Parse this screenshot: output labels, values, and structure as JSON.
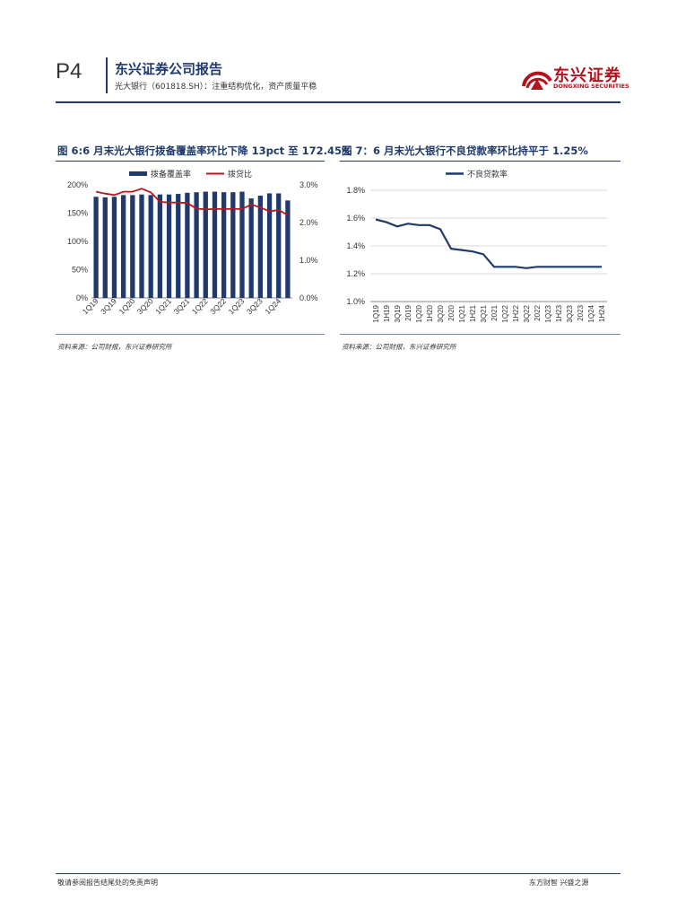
{
  "header": {
    "page": "P4",
    "title": "东兴证券公司报告",
    "subtitle": "光大银行（601818.SH）：注重结构优化，资产质量平稳",
    "logo_cn": "东兴证券",
    "logo_en": "DONGXING SECURITIES"
  },
  "colors": {
    "navy": "#1f3a6b",
    "red": "#c0141c"
  },
  "figure6": {
    "title": "图 6:6 月末光大银行拨备覆盖率环比下降 13pct 至 172.45%",
    "source": "资料来源：公司财报，东兴证券研究所"
  },
  "figure7": {
    "title": "图 7：6 月末光大银行不良贷款率环比持平于 1.25%",
    "source": "资料来源：公司财报，东兴证券研究所"
  },
  "footer": {
    "disclaimer": "敬请参阅报告结尾处的免责声明",
    "slogan": "东方财智 兴盛之源"
  },
  "chart_data": [
    {
      "type": "bar",
      "categories": [
        "1Q19",
        "2Q19",
        "3Q19",
        "4Q19",
        "1Q20",
        "2Q20",
        "3Q20",
        "4Q20",
        "1Q21",
        "2Q21",
        "3Q21",
        "4Q21",
        "1Q22",
        "2Q22",
        "3Q22",
        "4Q22",
        "1Q23",
        "2Q23",
        "3Q23",
        "4Q23",
        "1Q24",
        "2Q24"
      ],
      "tick_labels": [
        "1Q19",
        "3Q19",
        "1Q20",
        "3Q20",
        "1Q21",
        "3Q21",
        "1Q22",
        "3Q22",
        "1Q23",
        "3Q23",
        "1Q24"
      ],
      "series": [
        {
          "name": "拨备覆盖率",
          "kind": "bar",
          "axis": "left",
          "values": [
            179,
            178,
            179,
            182,
            182,
            183,
            182,
            183,
            183,
            184,
            186,
            187,
            188,
            188,
            187,
            187,
            188,
            176,
            181,
            185,
            185,
            172.45
          ]
        },
        {
          "name": "拨贷比",
          "kind": "line",
          "axis": "right",
          "values": [
            2.82,
            2.77,
            2.73,
            2.82,
            2.82,
            2.9,
            2.8,
            2.55,
            2.53,
            2.53,
            2.52,
            2.37,
            2.35,
            2.36,
            2.36,
            2.36,
            2.36,
            2.48,
            2.4,
            2.3,
            2.33,
            2.2
          ]
        }
      ],
      "y_left": {
        "ticks": [
          "0%",
          "50%",
          "100%",
          "150%",
          "200%"
        ],
        "ylim": [
          0,
          200
        ]
      },
      "y_right": {
        "ticks": [
          "0.0%",
          "1.0%",
          "2.0%",
          "3.0%"
        ],
        "ylim": [
          0,
          3
        ]
      },
      "legend": "top-center"
    },
    {
      "type": "line",
      "categories": [
        "1Q19",
        "1H19",
        "3Q19",
        "2019",
        "1Q20",
        "1H20",
        "3Q20",
        "2020",
        "1Q21",
        "1H21",
        "3Q21",
        "2021",
        "1Q22",
        "1H22",
        "3Q22",
        "2022",
        "1Q23",
        "1H23",
        "3Q23",
        "2023",
        "1Q24",
        "1H24"
      ],
      "series": [
        {
          "name": "不良贷款率",
          "values": [
            1.59,
            1.57,
            1.54,
            1.56,
            1.55,
            1.55,
            1.52,
            1.38,
            1.37,
            1.36,
            1.34,
            1.25,
            1.25,
            1.25,
            1.24,
            1.25,
            1.25,
            1.25,
            1.25,
            1.25,
            1.25,
            1.25
          ]
        }
      ],
      "y": {
        "ticks": [
          "1.0%",
          "1.2%",
          "1.4%",
          "1.6%",
          "1.8%"
        ],
        "ylim": [
          1.0,
          1.8
        ]
      },
      "grid": true,
      "legend": "top-center"
    }
  ]
}
